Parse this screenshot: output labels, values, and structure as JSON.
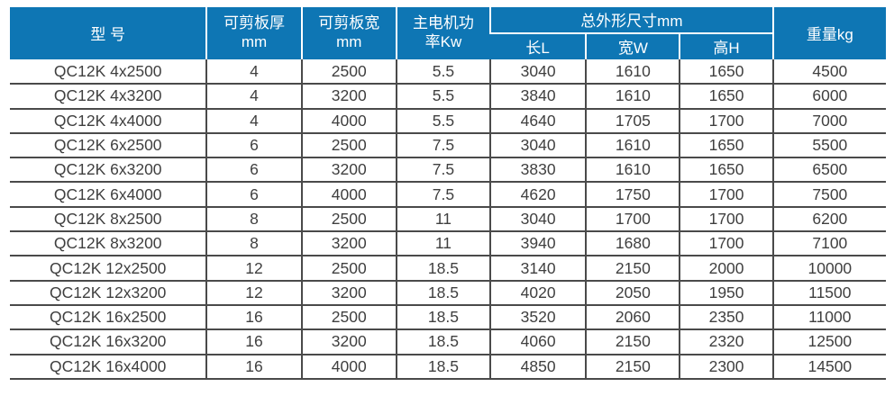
{
  "table": {
    "column_keys": [
      "model",
      "thickness",
      "plate_width",
      "power",
      "length",
      "width",
      "height",
      "weight"
    ],
    "header": {
      "model": "型 号",
      "thickness_line1": "可剪板厚",
      "thickness_line2": "mm",
      "plate_width_line1": "可剪板宽",
      "plate_width_line2": "mm",
      "power_line1": "主电机功",
      "power_line2": "率Kw",
      "dimensions_group": "总外形尺寸mm",
      "length": "长L",
      "width": "宽W",
      "height": "高H",
      "weight": "重量kg"
    },
    "rows": [
      [
        "QC12K 4x2500",
        "4",
        "2500",
        "5.5",
        "3040",
        "1610",
        "1650",
        "4500"
      ],
      [
        "QC12K 4x3200",
        "4",
        "3200",
        "5.5",
        "3840",
        "1610",
        "1650",
        "6000"
      ],
      [
        "QC12K 4x4000",
        "4",
        "4000",
        "5.5",
        "4640",
        "1705",
        "1700",
        "7000"
      ],
      [
        "QC12K 6x2500",
        "6",
        "2500",
        "7.5",
        "3040",
        "1610",
        "1650",
        "5500"
      ],
      [
        "QC12K 6x3200",
        "6",
        "3200",
        "7.5",
        "3830",
        "1610",
        "1650",
        "6500"
      ],
      [
        "QC12K 6x4000",
        "6",
        "4000",
        "7.5",
        "4620",
        "1750",
        "1700",
        "7500"
      ],
      [
        "QC12K 8x2500",
        "8",
        "2500",
        "11",
        "3040",
        "1700",
        "1700",
        "6200"
      ],
      [
        "QC12K 8x3200",
        "8",
        "3200",
        "11",
        "3940",
        "1680",
        "1700",
        "7100"
      ],
      [
        "QC12K 12x2500",
        "12",
        "2500",
        "18.5",
        "3140",
        "2150",
        "2000",
        "10000"
      ],
      [
        "QC12K 12x3200",
        "12",
        "3200",
        "18.5",
        "4020",
        "2050",
        "1950",
        "11500"
      ],
      [
        "QC12K 16x2500",
        "16",
        "2500",
        "18.5",
        "3520",
        "2060",
        "2350",
        "11000"
      ],
      [
        "QC12K 16x3200",
        "16",
        "3200",
        "18.5",
        "4060",
        "2150",
        "2320",
        "12500"
      ],
      [
        "QC12K 16x4000",
        "16",
        "4000",
        "18.5",
        "4850",
        "2150",
        "2300",
        "14500"
      ]
    ]
  },
  "colors": {
    "header_bg": "#0e76b4",
    "header_text": "#ffffff",
    "body_text": "#3f3f3f",
    "grid_line": "#4a4a4a",
    "header_sep": "#ffffff",
    "page_bg": "#ffffff"
  }
}
